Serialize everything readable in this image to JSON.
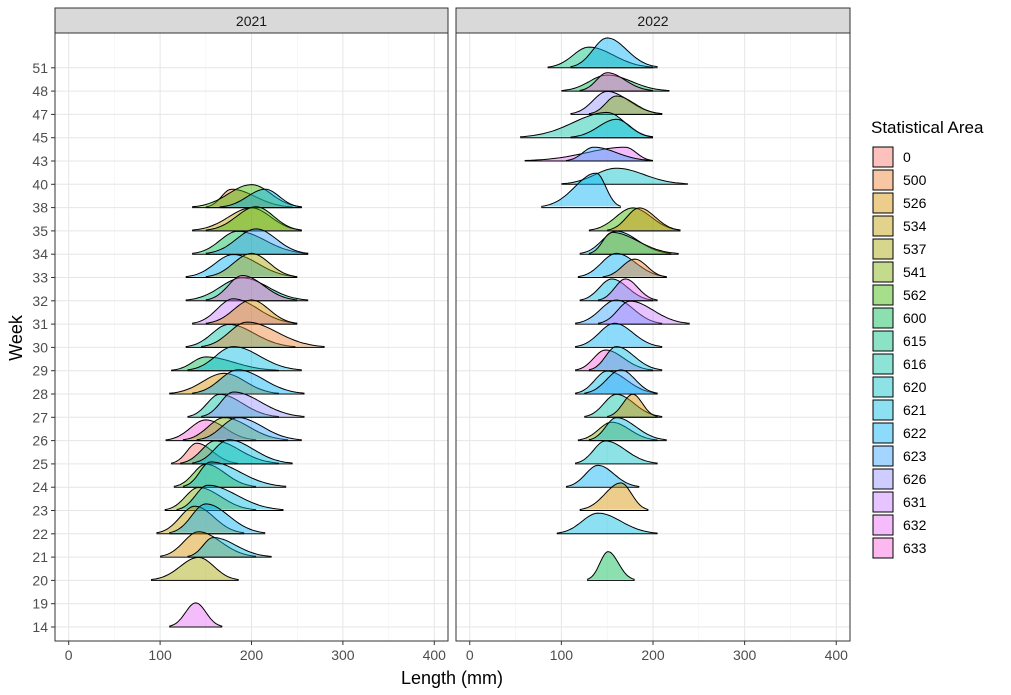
{
  "chart_data": {
    "type": "ridgeline",
    "xlabel": "Length (mm)",
    "ylabel": "Week",
    "xlim": [
      -15,
      415
    ],
    "x_ticks": [
      0,
      100,
      200,
      300,
      400
    ],
    "weeks": [
      "14",
      "19",
      "20",
      "21",
      "22",
      "23",
      "24",
      "25",
      "26",
      "27",
      "28",
      "29",
      "30",
      "31",
      "32",
      "33",
      "34",
      "35",
      "38",
      "40",
      "43",
      "45",
      "47",
      "48",
      "51"
    ],
    "grid": true,
    "legend": {
      "title": "Statistical Area",
      "position": "right",
      "entries": [
        {
          "label": "0",
          "color": "#F8766D"
        },
        {
          "label": "500",
          "color": "#EA8331"
        },
        {
          "label": "526",
          "color": "#D89000"
        },
        {
          "label": "534",
          "color": "#C09B00"
        },
        {
          "label": "537",
          "color": "#A3A500"
        },
        {
          "label": "541",
          "color": "#7CAE00"
        },
        {
          "label": "562",
          "color": "#39B600"
        },
        {
          "label": "600",
          "color": "#00BB4E"
        },
        {
          "label": "615",
          "color": "#00BF7D"
        },
        {
          "label": "616",
          "color": "#00C1A3"
        },
        {
          "label": "620",
          "color": "#00BFC4"
        },
        {
          "label": "621",
          "color": "#00BAE0"
        },
        {
          "label": "622",
          "color": "#00B0F6"
        },
        {
          "label": "623",
          "color": "#35A2FF"
        },
        {
          "label": "626",
          "color": "#9590FF"
        },
        {
          "label": "631",
          "color": "#C77CFF"
        },
        {
          "label": "632",
          "color": "#E76BF3"
        },
        {
          "label": "633",
          "color": "#FA62DB"
        }
      ]
    },
    "panels": [
      {
        "title": "2021",
        "ridges": [
          {
            "week": "14",
            "area": "632",
            "x": [
              110,
              168
            ],
            "peak": 139,
            "h": 1.05
          },
          {
            "week": "20",
            "area": "537",
            "x": [
              90,
              186
            ],
            "peak": 142,
            "h": 1.0
          },
          {
            "week": "21",
            "area": "526",
            "x": [
              100,
              205
            ],
            "peak": 142,
            "h": 1.1
          },
          {
            "week": "21",
            "area": "621",
            "x": [
              130,
              222
            ],
            "peak": 158,
            "h": 0.85
          },
          {
            "week": "22",
            "area": "534",
            "x": [
              96,
              192
            ],
            "peak": 138,
            "h": 1.2
          },
          {
            "week": "22",
            "area": "622",
            "x": [
              110,
              215
            ],
            "peak": 150,
            "h": 1.3
          },
          {
            "week": "23",
            "area": "541",
            "x": [
              105,
              205
            ],
            "peak": 142,
            "h": 1.0
          },
          {
            "week": "23",
            "area": "621",
            "x": [
              118,
              235
            ],
            "peak": 152,
            "h": 1.1
          },
          {
            "week": "24",
            "area": "562",
            "x": [
              115,
              205
            ],
            "peak": 150,
            "h": 1.0
          },
          {
            "week": "24",
            "area": "621",
            "x": [
              125,
              238
            ],
            "peak": 155,
            "h": 1.1
          },
          {
            "week": "25",
            "area": "0",
            "x": [
              112,
              185
            ],
            "peak": 140,
            "h": 0.9
          },
          {
            "week": "25",
            "area": "615",
            "x": [
              122,
              230
            ],
            "peak": 160,
            "h": 1.0
          },
          {
            "week": "25",
            "area": "621",
            "x": [
              135,
              245
            ],
            "peak": 175,
            "h": 1.05
          },
          {
            "week": "26",
            "area": "633",
            "x": [
              106,
              205
            ],
            "peak": 150,
            "h": 0.9
          },
          {
            "week": "26",
            "area": "541",
            "x": [
              125,
              240
            ],
            "peak": 170,
            "h": 1.0
          },
          {
            "week": "26",
            "area": "623",
            "x": [
              140,
              255
            ],
            "peak": 185,
            "h": 1.0
          },
          {
            "week": "27",
            "area": "616",
            "x": [
              130,
              230
            ],
            "peak": 165,
            "h": 1.0
          },
          {
            "week": "27",
            "area": "626",
            "x": [
              145,
              258
            ],
            "peak": 180,
            "h": 1.1
          },
          {
            "week": "28",
            "area": "526",
            "x": [
              110,
              230
            ],
            "peak": 170,
            "h": 0.9
          },
          {
            "week": "28",
            "area": "622",
            "x": [
              135,
              258
            ],
            "peak": 185,
            "h": 1.05
          },
          {
            "week": "29",
            "area": "600",
            "x": [
              112,
              230
            ],
            "peak": 150,
            "h": 0.6
          },
          {
            "week": "29",
            "area": "621",
            "x": [
              130,
              255
            ],
            "peak": 180,
            "h": 1.05
          },
          {
            "week": "30",
            "area": "616",
            "x": [
              128,
              248
            ],
            "peak": 175,
            "h": 1.0
          },
          {
            "week": "30",
            "area": "500",
            "x": [
              145,
              280
            ],
            "peak": 195,
            "h": 1.1
          },
          {
            "week": "31",
            "area": "631",
            "x": [
              135,
              250
            ],
            "peak": 180,
            "h": 1.1
          },
          {
            "week": "31",
            "area": "526",
            "x": [
              150,
              250
            ],
            "peak": 200,
            "h": 1.05
          },
          {
            "week": "32",
            "area": "615",
            "x": [
              128,
              262
            ],
            "peak": 190,
            "h": 1.0
          },
          {
            "week": "32",
            "area": "633",
            "x": [
              150,
              250
            ],
            "peak": 190,
            "h": 1.1
          },
          {
            "week": "33",
            "area": "622",
            "x": [
              128,
              250
            ],
            "peak": 180,
            "h": 1.0
          },
          {
            "week": "33",
            "area": "537",
            "x": [
              150,
              250
            ],
            "peak": 200,
            "h": 1.05
          },
          {
            "week": "34",
            "area": "600",
            "x": [
              135,
              262
            ],
            "peak": 185,
            "h": 1.0
          },
          {
            "week": "34",
            "area": "623",
            "x": [
              150,
              262
            ],
            "peak": 205,
            "h": 1.1
          },
          {
            "week": "35",
            "area": "534",
            "x": [
              135,
              255
            ],
            "peak": 200,
            "h": 1.0
          },
          {
            "week": "35",
            "area": "562",
            "x": [
              150,
              255
            ],
            "peak": 205,
            "h": 1.05
          },
          {
            "week": "38",
            "area": "500",
            "x": [
              150,
              245
            ],
            "peak": 178,
            "h": 0.8
          },
          {
            "week": "38",
            "area": "562",
            "x": [
              135,
              255
            ],
            "peak": 200,
            "h": 1.0
          },
          {
            "week": "38",
            "area": "622",
            "x": [
              165,
              255
            ],
            "peak": 215,
            "h": 0.8
          }
        ]
      },
      {
        "title": "2022",
        "ridges": [
          {
            "week": "20",
            "area": "600",
            "x": [
              128,
              180
            ],
            "peak": 151,
            "h": 1.25
          },
          {
            "week": "22",
            "area": "621",
            "x": [
              95,
              205
            ],
            "peak": 140,
            "h": 0.9
          },
          {
            "week": "23",
            "area": "526",
            "x": [
              120,
              195
            ],
            "peak": 165,
            "h": 1.2
          },
          {
            "week": "24",
            "area": "622",
            "x": [
              105,
              185
            ],
            "peak": 140,
            "h": 0.95
          },
          {
            "week": "25",
            "area": "620",
            "x": [
              115,
              205
            ],
            "peak": 148,
            "h": 1.0
          },
          {
            "week": "26",
            "area": "541",
            "x": [
              118,
              205
            ],
            "peak": 155,
            "h": 0.8
          },
          {
            "week": "26",
            "area": "621",
            "x": [
              130,
              215
            ],
            "peak": 160,
            "h": 1.0
          },
          {
            "week": "27",
            "area": "616",
            "x": [
              125,
              210
            ],
            "peak": 160,
            "h": 1.0
          },
          {
            "week": "27",
            "area": "526",
            "x": [
              150,
              205
            ],
            "peak": 178,
            "h": 1.0
          },
          {
            "week": "28",
            "area": "621",
            "x": [
              115,
              205
            ],
            "peak": 150,
            "h": 1.0
          },
          {
            "week": "28",
            "area": "623",
            "x": [
              125,
              205
            ],
            "peak": 165,
            "h": 1.05
          },
          {
            "week": "29",
            "area": "633",
            "x": [
              115,
              200
            ],
            "peak": 148,
            "h": 0.9
          },
          {
            "week": "29",
            "area": "621",
            "x": [
              130,
              210
            ],
            "peak": 160,
            "h": 1.05
          },
          {
            "week": "30",
            "area": "622",
            "x": [
              115,
              210
            ],
            "peak": 158,
            "h": 1.05
          },
          {
            "week": "31",
            "area": "623",
            "x": [
              115,
              210
            ],
            "peak": 160,
            "h": 1.05
          },
          {
            "week": "31",
            "area": "631",
            "x": [
              140,
              240
            ],
            "peak": 175,
            "h": 1.0
          },
          {
            "week": "32",
            "area": "621",
            "x": [
              120,
              200
            ],
            "peak": 155,
            "h": 0.95
          },
          {
            "week": "32",
            "area": "632",
            "x": [
              140,
              205
            ],
            "peak": 170,
            "h": 0.95
          },
          {
            "week": "33",
            "area": "622",
            "x": [
              118,
              215
            ],
            "peak": 160,
            "h": 1.05
          },
          {
            "week": "33",
            "area": "500",
            "x": [
              145,
              215
            ],
            "peak": 180,
            "h": 0.8
          },
          {
            "week": "34",
            "area": "621",
            "x": [
              120,
              220
            ],
            "peak": 160,
            "h": 1.0
          },
          {
            "week": "34",
            "area": "541",
            "x": [
              130,
              228
            ],
            "peak": 155,
            "h": 0.95
          },
          {
            "week": "35",
            "area": "562",
            "x": [
              130,
              230
            ],
            "peak": 178,
            "h": 1.0
          },
          {
            "week": "35",
            "area": "526",
            "x": [
              150,
              230
            ],
            "peak": 185,
            "h": 1.0
          },
          {
            "week": "38",
            "area": "622",
            "x": [
              78,
              165
            ],
            "peak": 138,
            "h": 1.5
          },
          {
            "week": "40",
            "area": "620",
            "x": [
              100,
              238
            ],
            "peak": 160,
            "h": 0.7
          },
          {
            "week": "43",
            "area": "632",
            "x": [
              60,
              200
            ],
            "peak": 170,
            "h": 0.6
          },
          {
            "week": "43",
            "area": "623",
            "x": [
              105,
              200
            ],
            "peak": 135,
            "h": 0.6
          },
          {
            "week": "45",
            "area": "616",
            "x": [
              55,
              200
            ],
            "peak": 150,
            "h": 1.1
          },
          {
            "week": "45",
            "area": "621",
            "x": [
              110,
              200
            ],
            "peak": 160,
            "h": 0.8
          },
          {
            "week": "47",
            "area": "626",
            "x": [
              110,
              210
            ],
            "peak": 150,
            "h": 1.0
          },
          {
            "week": "47",
            "area": "541",
            "x": [
              130,
              210
            ],
            "peak": 160,
            "h": 0.8
          },
          {
            "week": "48",
            "area": "600",
            "x": [
              100,
              218
            ],
            "peak": 150,
            "h": 0.7
          },
          {
            "week": "48",
            "area": "633",
            "x": [
              120,
              200
            ],
            "peak": 150,
            "h": 0.8
          },
          {
            "week": "51",
            "area": "615",
            "x": [
              85,
              200
            ],
            "peak": 130,
            "h": 0.9
          },
          {
            "week": "51",
            "area": "622",
            "x": [
              110,
              205
            ],
            "peak": 150,
            "h": 1.3
          }
        ]
      }
    ]
  }
}
